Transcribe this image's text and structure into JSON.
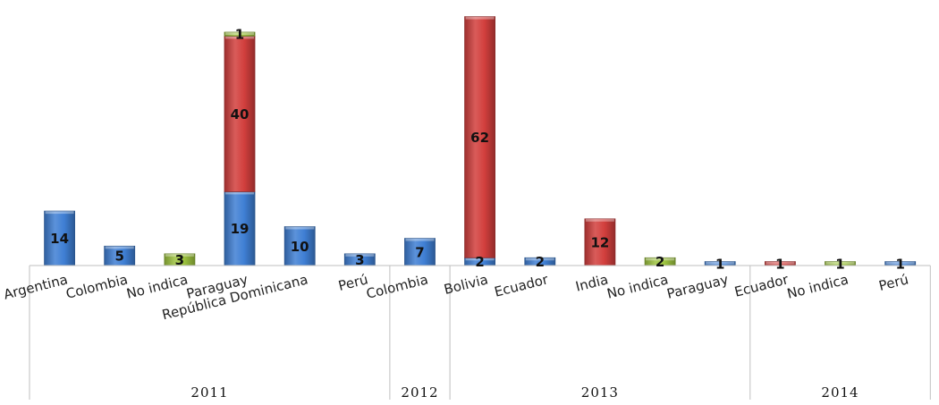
{
  "chart_data": {
    "type": "bar",
    "stacked": true,
    "title": "",
    "xlabel": "",
    "ylabel": "",
    "ylim": [
      0,
      65
    ],
    "grid": false,
    "legend": "none",
    "groups": [
      {
        "label": "2011",
        "categories": [
          "Argentina",
          "Colombia",
          "No indica",
          "Paraguay",
          "República Dominicana",
          "Perú"
        ]
      },
      {
        "label": "2012",
        "categories": [
          "Colombia"
        ]
      },
      {
        "label": "2013",
        "categories": [
          "Bolivia",
          "Ecuador",
          "India",
          "No indica",
          "Paraguay"
        ]
      },
      {
        "label": "2014",
        "categories": [
          "Ecuador",
          "No indica",
          "Perú"
        ]
      }
    ],
    "bars": [
      {
        "category": "Argentina",
        "group": "2011",
        "segments": [
          {
            "value": 14,
            "color": "blue"
          }
        ]
      },
      {
        "category": "Colombia",
        "group": "2011",
        "segments": [
          {
            "value": 5,
            "color": "blue"
          }
        ]
      },
      {
        "category": "No indica",
        "group": "2011",
        "segments": [
          {
            "value": 3,
            "color": "green"
          }
        ]
      },
      {
        "category": "Paraguay",
        "group": "2011",
        "segments": [
          {
            "value": 19,
            "color": "blue"
          },
          {
            "value": 40,
            "color": "red"
          },
          {
            "value": 1,
            "color": "green"
          }
        ]
      },
      {
        "category": "República Dominicana",
        "group": "2011",
        "segments": [
          {
            "value": 10,
            "color": "blue"
          }
        ]
      },
      {
        "category": "Perú",
        "group": "2011",
        "segments": [
          {
            "value": 3,
            "color": "blue"
          }
        ]
      },
      {
        "category": "Colombia",
        "group": "2012",
        "segments": [
          {
            "value": 7,
            "color": "blue"
          }
        ]
      },
      {
        "category": "Bolivia",
        "group": "2013",
        "segments": [
          {
            "value": 2,
            "color": "blue"
          },
          {
            "value": 62,
            "color": "red"
          }
        ]
      },
      {
        "category": "Ecuador",
        "group": "2013",
        "segments": [
          {
            "value": 2,
            "color": "blue"
          }
        ]
      },
      {
        "category": "India",
        "group": "2013",
        "segments": [
          {
            "value": 12,
            "color": "red"
          }
        ]
      },
      {
        "category": "No indica",
        "group": "2013",
        "segments": [
          {
            "value": 2,
            "color": "green"
          }
        ]
      },
      {
        "category": "Paraguay",
        "group": "2013",
        "segments": [
          {
            "value": 1,
            "color": "blue"
          }
        ]
      },
      {
        "category": "Ecuador",
        "group": "2014",
        "segments": [
          {
            "value": 1,
            "color": "red"
          }
        ]
      },
      {
        "category": "No indica",
        "group": "2014",
        "segments": [
          {
            "value": 1,
            "color": "green"
          }
        ]
      },
      {
        "category": "Perú",
        "group": "2014",
        "segments": [
          {
            "value": 1,
            "color": "blue"
          }
        ]
      }
    ],
    "colors": {
      "blue": "#3f7fd4",
      "red": "#d23f3d",
      "green": "#9dc33f"
    }
  }
}
